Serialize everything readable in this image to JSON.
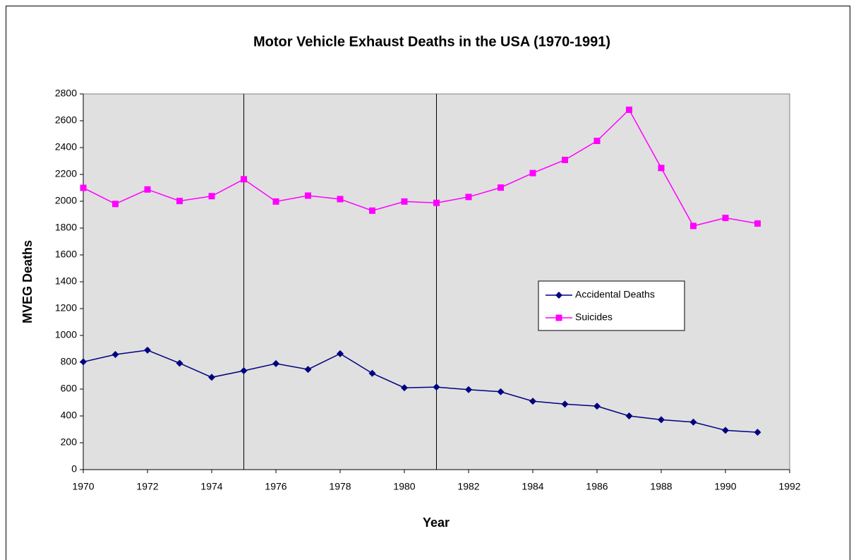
{
  "chart_data": {
    "type": "line",
    "title": "Motor Vehicle Exhaust Deaths in the USA (1970-1991)",
    "xlabel": "Year",
    "ylabel": "MVEG Deaths",
    "x": [
      1970,
      1971,
      1972,
      1973,
      1974,
      1975,
      1976,
      1977,
      1978,
      1979,
      1980,
      1981,
      1982,
      1983,
      1984,
      1985,
      1986,
      1987,
      1988,
      1989,
      1990,
      1991
    ],
    "series": [
      {
        "name": "Accidental Deaths",
        "color": "#000080",
        "marker": "diamond",
        "values": [
          803,
          858,
          890,
          793,
          688,
          737,
          790,
          747,
          864,
          718,
          610,
          615,
          596,
          580,
          510,
          488,
          473,
          400,
          372,
          354,
          293,
          278
        ]
      },
      {
        "name": "Suicides",
        "color": "#ff00ff",
        "marker": "square",
        "values": [
          2100,
          1980,
          2088,
          2002,
          2038,
          2164,
          1998,
          2042,
          2016,
          1930,
          1998,
          1988,
          2032,
          2102,
          2210,
          2308,
          2450,
          2682,
          2248,
          1816,
          1876,
          1834
        ]
      }
    ],
    "xlim": [
      1970,
      1992
    ],
    "xticks": [
      1970,
      1972,
      1974,
      1976,
      1978,
      1980,
      1982,
      1984,
      1986,
      1988,
      1990,
      1992
    ],
    "ylim": [
      0,
      2800
    ],
    "yticks": [
      0,
      200,
      400,
      600,
      800,
      1000,
      1200,
      1400,
      1600,
      1800,
      2000,
      2200,
      2400,
      2600,
      2800
    ],
    "reference_lines": [
      1975,
      1981
    ],
    "grid": false,
    "legend": "right"
  }
}
